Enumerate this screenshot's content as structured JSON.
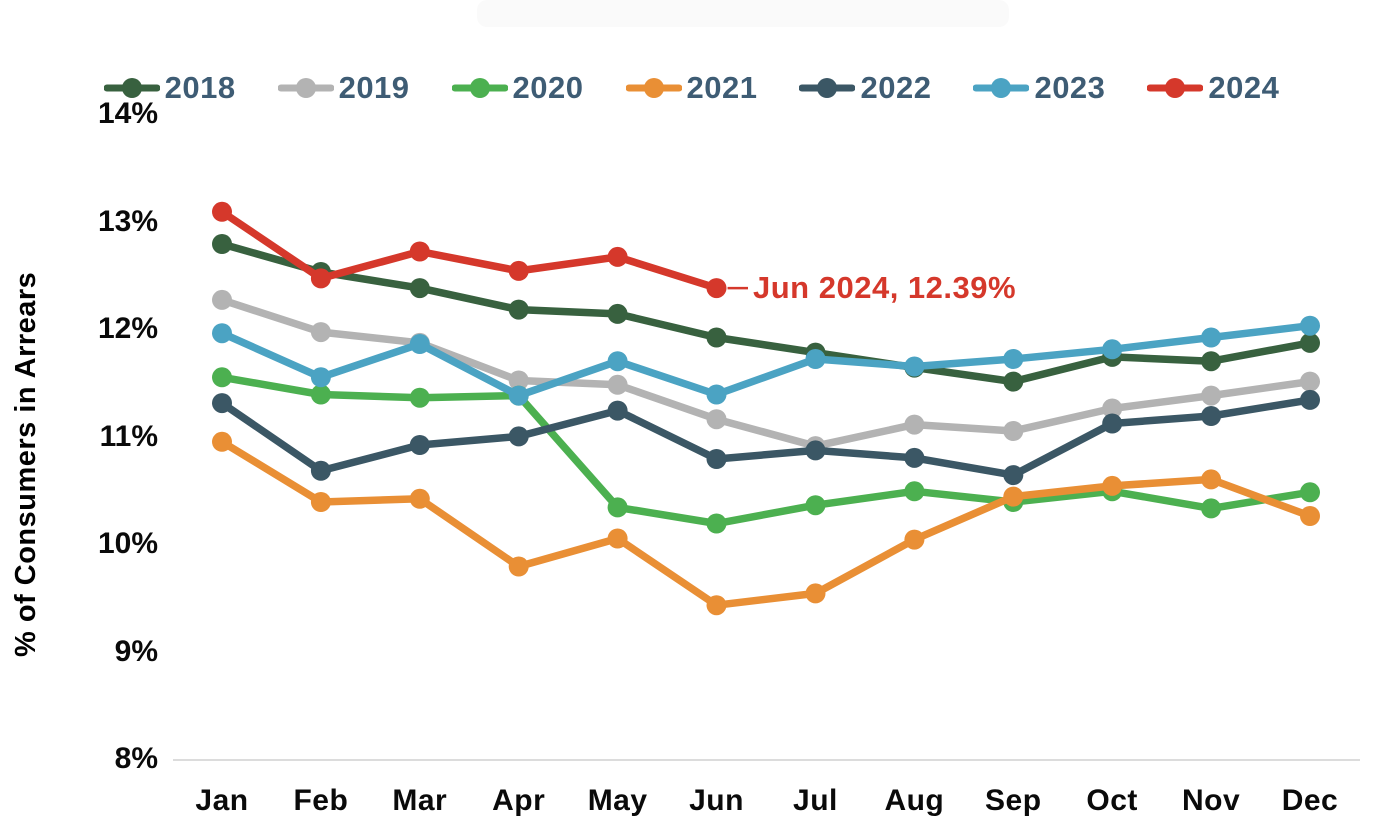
{
  "chart_data": {
    "type": "line",
    "title": "",
    "xlabel": "",
    "ylabel": "% of Consumers in Arrears",
    "categories": [
      "Jan",
      "Feb",
      "Mar",
      "Apr",
      "May",
      "Jun",
      "Jul",
      "Aug",
      "Sep",
      "Oct",
      "Nov",
      "Dec"
    ],
    "y_ticks": [
      {
        "value": 14,
        "label": "14%"
      },
      {
        "value": 13,
        "label": "13%"
      },
      {
        "value": 12,
        "label": "12%"
      },
      {
        "value": 11,
        "label": "11%"
      },
      {
        "value": 10,
        "label": "10%"
      },
      {
        "value": 9,
        "label": "9%"
      },
      {
        "value": 8,
        "label": "8%"
      }
    ],
    "ylim": [
      8,
      14
    ],
    "grid": false,
    "legend_position": "top",
    "series": [
      {
        "name": "2018",
        "color": "#38613f",
        "values": [
          12.8,
          12.54,
          12.39,
          12.19,
          12.15,
          11.93,
          11.79,
          11.65,
          11.52,
          11.75,
          11.71,
          11.88
        ]
      },
      {
        "name": "2019",
        "color": "#b3b3b3",
        "values": [
          12.28,
          11.98,
          11.88,
          11.53,
          11.49,
          11.17,
          10.92,
          11.12,
          11.06,
          11.27,
          11.39,
          11.52
        ]
      },
      {
        "name": "2020",
        "color": "#4cb050",
        "values": [
          11.56,
          11.4,
          11.37,
          11.39,
          10.35,
          10.2,
          10.37,
          10.5,
          10.4,
          10.5,
          10.34,
          10.49
        ]
      },
      {
        "name": "2021",
        "color": "#e98f35",
        "values": [
          10.96,
          10.4,
          10.43,
          9.8,
          10.06,
          9.44,
          9.55,
          10.05,
          10.45,
          10.55,
          10.61,
          10.27
        ]
      },
      {
        "name": "2022",
        "color": "#3b5765",
        "values": [
          11.32,
          10.69,
          10.93,
          11.01,
          11.25,
          10.8,
          10.88,
          10.81,
          10.65,
          11.13,
          11.2,
          11.35
        ]
      },
      {
        "name": "2023",
        "color": "#4ba3c3",
        "values": [
          11.97,
          11.56,
          11.87,
          11.39,
          11.71,
          11.4,
          11.73,
          11.66,
          11.73,
          11.82,
          11.93,
          12.04
        ]
      },
      {
        "name": "2024",
        "color": "#d5382b",
        "values": [
          13.1,
          12.48,
          12.73,
          12.55,
          12.68,
          12.39,
          null,
          null,
          null,
          null,
          null,
          null
        ]
      }
    ],
    "annotation": {
      "text": "Jun 2024, 12.39%",
      "series": "2024",
      "month": "Jun",
      "value": 12.39,
      "color": "#d5382b"
    },
    "axis_line_color": "#dcdcdc"
  }
}
